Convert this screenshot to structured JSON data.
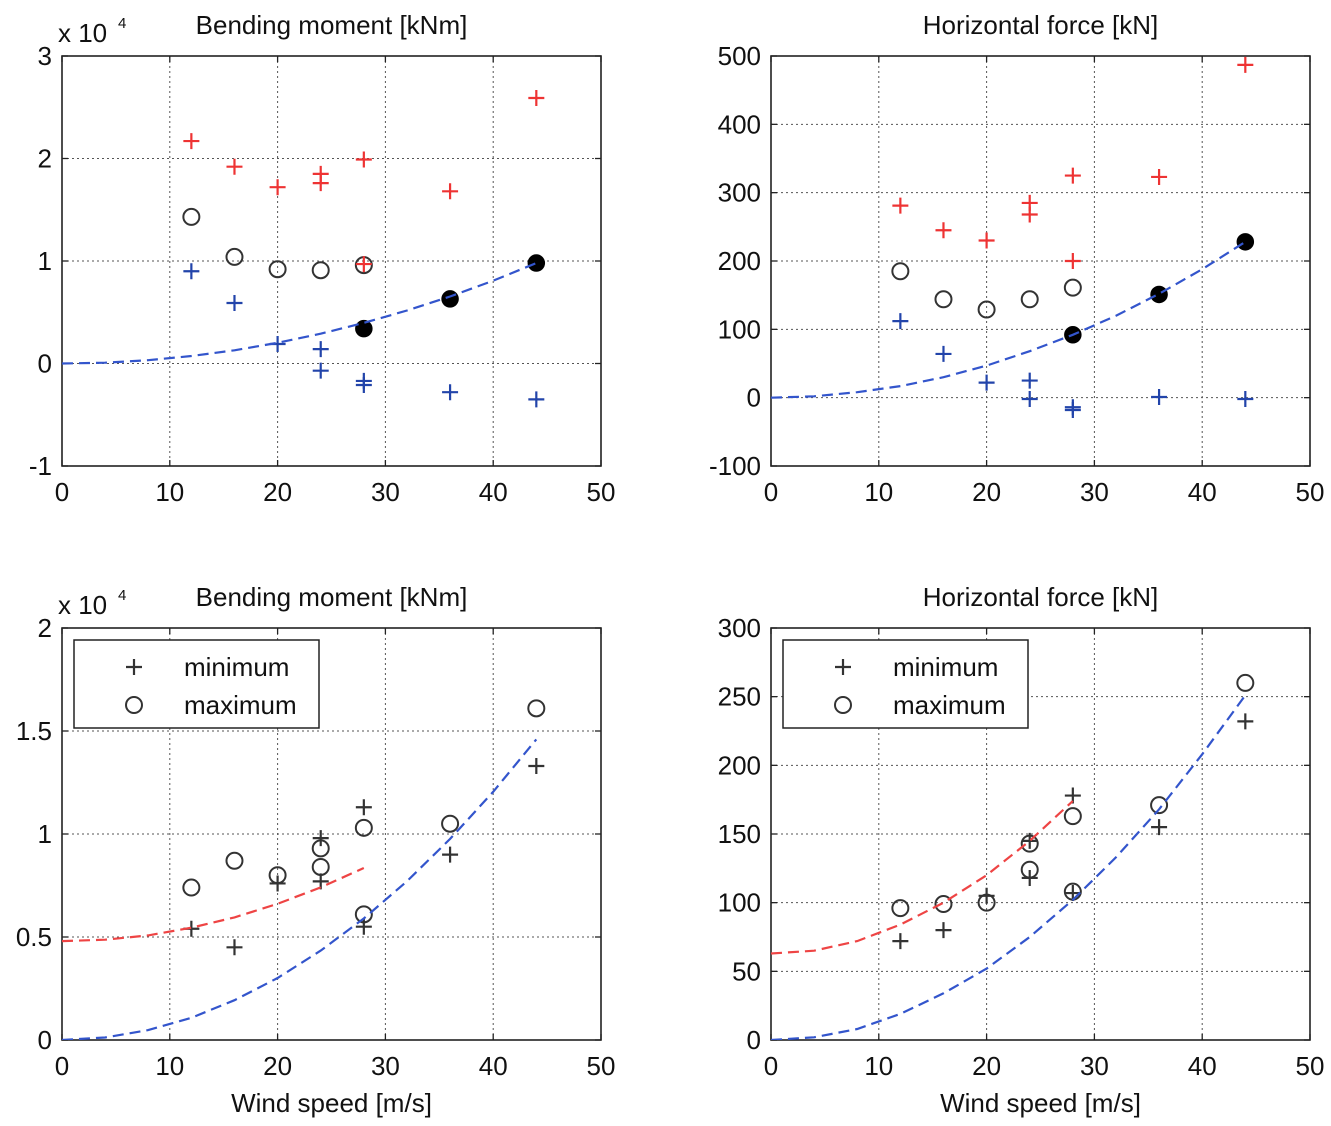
{
  "chart_data": [
    {
      "type": "scatter",
      "title": "Bending moment [kNm]",
      "xlabel": "",
      "ylabel": "",
      "scale_label": "x 10",
      "scale_exponent": "4",
      "xlim": [
        0,
        50
      ],
      "ylim": [
        -1,
        3
      ],
      "xticks": [
        0,
        10,
        20,
        30,
        40,
        50
      ],
      "yticks": [
        -1,
        0,
        1,
        2,
        3
      ],
      "grid": true,
      "legend": null,
      "series": [
        {
          "marker": "plus",
          "color": "#ee3333",
          "points": [
            [
              12,
              2.17
            ],
            [
              16,
              1.92
            ],
            [
              20,
              1.72
            ],
            [
              24,
              1.85
            ],
            [
              24,
              1.76
            ],
            [
              28,
              1.99
            ],
            [
              36,
              1.68
            ],
            [
              44,
              2.59
            ]
          ]
        },
        {
          "marker": "circle",
          "color": "#333333",
          "points": [
            [
              12,
              1.43
            ],
            [
              16,
              1.04
            ],
            [
              20,
              0.92
            ],
            [
              24,
              0.91
            ],
            [
              28,
              0.96
            ]
          ]
        },
        {
          "marker": "plus",
          "color": "#ee3333",
          "points": [
            [
              28,
              0.97
            ]
          ]
        },
        {
          "marker": "plus",
          "color": "#2244aa",
          "points": [
            [
              12,
              0.9
            ],
            [
              16,
              0.59
            ],
            [
              20,
              0.19
            ],
            [
              24,
              0.14
            ],
            [
              24,
              -0.07
            ],
            [
              28,
              -0.17
            ],
            [
              28,
              -0.21
            ],
            [
              36,
              -0.28
            ],
            [
              44,
              -0.35
            ]
          ]
        },
        {
          "marker": "dot",
          "color": "#000000",
          "points": [
            [
              28,
              0.34
            ],
            [
              36,
              0.63
            ],
            [
              44,
              0.98
            ]
          ]
        },
        {
          "marker": "curve",
          "color": "#3355cc",
          "points": [
            [
              0,
              0
            ],
            [
              4,
              0.008
            ],
            [
              8,
              0.032
            ],
            [
              12,
              0.073
            ],
            [
              16,
              0.129
            ],
            [
              20,
              0.202
            ],
            [
              24,
              0.291
            ],
            [
              28,
              0.396
            ],
            [
              32,
              0.517
            ],
            [
              36,
              0.654
            ],
            [
              40,
              0.808
            ],
            [
              44,
              0.98
            ]
          ]
        }
      ]
    },
    {
      "type": "scatter",
      "title": "Horizontal force [kN]",
      "xlabel": "",
      "ylabel": "",
      "xlim": [
        0,
        50
      ],
      "ylim": [
        -100,
        500
      ],
      "xticks": [
        0,
        10,
        20,
        30,
        40,
        50
      ],
      "yticks": [
        -100,
        0,
        100,
        200,
        300,
        400,
        500
      ],
      "grid": true,
      "legend": null,
      "series": [
        {
          "marker": "plus",
          "color": "#ee3333",
          "points": [
            [
              12,
              281
            ],
            [
              16,
              245
            ],
            [
              20,
              230
            ],
            [
              24,
              285
            ],
            [
              24,
              268
            ],
            [
              28,
              325
            ],
            [
              28,
              200
            ],
            [
              36,
              323
            ],
            [
              44,
              487
            ]
          ]
        },
        {
          "marker": "circle",
          "color": "#333333",
          "points": [
            [
              12,
              185
            ],
            [
              16,
              144
            ],
            [
              20,
              129
            ],
            [
              24,
              144
            ],
            [
              28,
              161
            ]
          ]
        },
        {
          "marker": "plus",
          "color": "#2244aa",
          "points": [
            [
              12,
              112
            ],
            [
              16,
              64
            ],
            [
              20,
              22
            ],
            [
              24,
              25
            ],
            [
              24,
              -2
            ],
            [
              28,
              -14
            ],
            [
              28,
              -18
            ],
            [
              36,
              1
            ],
            [
              44,
              -2
            ]
          ]
        },
        {
          "marker": "dot",
          "color": "#000000",
          "points": [
            [
              28,
              92
            ],
            [
              36,
              151
            ],
            [
              44,
              228
            ]
          ]
        },
        {
          "marker": "curve",
          "color": "#3355cc",
          "points": [
            [
              0,
              0
            ],
            [
              4,
              2
            ],
            [
              8,
              8
            ],
            [
              12,
              17
            ],
            [
              16,
              30
            ],
            [
              20,
              47
            ],
            [
              24,
              68
            ],
            [
              28,
              92
            ],
            [
              32,
              120
            ],
            [
              36,
              152
            ],
            [
              40,
              188
            ],
            [
              44,
              228
            ]
          ]
        }
      ]
    },
    {
      "type": "scatter",
      "title": "Bending moment [kNm]",
      "xlabel": "Wind speed [m/s]",
      "ylabel": "",
      "scale_label": "x 10",
      "scale_exponent": "4",
      "xlim": [
        0,
        50
      ],
      "ylim": [
        0,
        2
      ],
      "xticks": [
        0,
        10,
        20,
        30,
        40,
        50
      ],
      "yticks": [
        0,
        0.5,
        1,
        1.5,
        2
      ],
      "grid": true,
      "legend": {
        "position": "top-left",
        "entries": [
          {
            "marker": "plus",
            "label": "minimum"
          },
          {
            "marker": "circle",
            "label": "maximum"
          }
        ]
      },
      "series": [
        {
          "marker": "plus",
          "color": "#333333",
          "points": [
            [
              12,
              0.54
            ],
            [
              16,
              0.45
            ],
            [
              20,
              0.76
            ],
            [
              24,
              0.98
            ],
            [
              24,
              0.77
            ],
            [
              28,
              1.13
            ],
            [
              28,
              0.55
            ],
            [
              36,
              0.9
            ],
            [
              44,
              1.33
            ]
          ]
        },
        {
          "marker": "circle",
          "color": "#333333",
          "points": [
            [
              12,
              0.74
            ],
            [
              16,
              0.87
            ],
            [
              20,
              0.8
            ],
            [
              24,
              0.93
            ],
            [
              24,
              0.84
            ],
            [
              28,
              1.03
            ],
            [
              28,
              0.61
            ],
            [
              36,
              1.05
            ],
            [
              44,
              1.61
            ]
          ]
        },
        {
          "marker": "curve",
          "color": "#ee4444",
          "points": [
            [
              0,
              0.48
            ],
            [
              4,
              0.487
            ],
            [
              8,
              0.508
            ],
            [
              12,
              0.545
            ],
            [
              16,
              0.595
            ],
            [
              20,
              0.661
            ],
            [
              24,
              0.741
            ],
            [
              28,
              0.835
            ]
          ]
        },
        {
          "marker": "curve",
          "color": "#3355cc",
          "points": [
            [
              0,
              0
            ],
            [
              4,
              0.012
            ],
            [
              8,
              0.048
            ],
            [
              12,
              0.108
            ],
            [
              16,
              0.193
            ],
            [
              20,
              0.301
            ],
            [
              24,
              0.434
            ],
            [
              28,
              0.59
            ],
            [
              32,
              0.771
            ],
            [
              36,
              0.976
            ],
            [
              40,
              1.205
            ],
            [
              44,
              1.459
            ]
          ]
        }
      ]
    },
    {
      "type": "scatter",
      "title": "Horizontal force [kN]",
      "xlabel": "Wind speed [m/s]",
      "ylabel": "",
      "xlim": [
        0,
        50
      ],
      "ylim": [
        0,
        300
      ],
      "xticks": [
        0,
        10,
        20,
        30,
        40,
        50
      ],
      "yticks": [
        0,
        50,
        100,
        150,
        200,
        250,
        300
      ],
      "grid": true,
      "legend": {
        "position": "top-left",
        "entries": [
          {
            "marker": "plus",
            "label": "minimum"
          },
          {
            "marker": "circle",
            "label": "maximum"
          }
        ]
      },
      "series": [
        {
          "marker": "plus",
          "color": "#333333",
          "points": [
            [
              12,
              72
            ],
            [
              16,
              80
            ],
            [
              20,
              105
            ],
            [
              24,
              145
            ],
            [
              24,
              118
            ],
            [
              28,
              178
            ],
            [
              28,
              107
            ],
            [
              36,
              155
            ],
            [
              44,
              232
            ]
          ]
        },
        {
          "marker": "circle",
          "color": "#333333",
          "points": [
            [
              12,
              96
            ],
            [
              16,
              99
            ],
            [
              20,
              100
            ],
            [
              24,
              143
            ],
            [
              24,
              124
            ],
            [
              28,
              163
            ],
            [
              28,
              108
            ],
            [
              36,
              171
            ],
            [
              44,
              260
            ]
          ]
        },
        {
          "marker": "curve",
          "color": "#ee4444",
          "points": [
            [
              0,
              63
            ],
            [
              4,
              65
            ],
            [
              8,
              72
            ],
            [
              12,
              84
            ],
            [
              16,
              100
            ],
            [
              20,
              120
            ],
            [
              24,
              145
            ],
            [
              28,
              174
            ]
          ]
        },
        {
          "marker": "curve",
          "color": "#3355cc",
          "points": [
            [
              0,
              0
            ],
            [
              4,
              2
            ],
            [
              8,
              8
            ],
            [
              12,
              19
            ],
            [
              16,
              34
            ],
            [
              20,
              52
            ],
            [
              24,
              75
            ],
            [
              28,
              102
            ],
            [
              32,
              133
            ],
            [
              36,
              168
            ],
            [
              40,
              208
            ],
            [
              44,
              251
            ]
          ]
        }
      ]
    }
  ]
}
